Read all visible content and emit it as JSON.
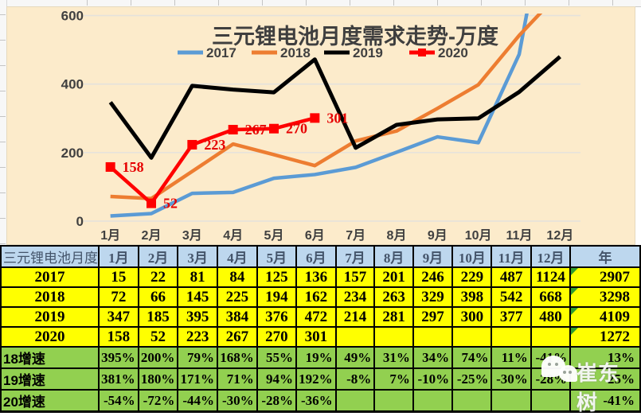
{
  "chart_data": {
    "type": "line",
    "title": "三元锂电池月度需求走势-万度",
    "categories": [
      "1月",
      "2月",
      "3月",
      "4月",
      "5月",
      "6月",
      "7月",
      "8月",
      "9月",
      "10月",
      "11月",
      "12月"
    ],
    "y_ticks": [
      0,
      200,
      400,
      600
    ],
    "ylim": [
      0,
      600
    ],
    "grid": true,
    "legend_position": "top",
    "series": [
      {
        "name": "2017",
        "color": "#5B9BD5",
        "marker": "none",
        "values": [
          15,
          22,
          81,
          84,
          125,
          136,
          157,
          201,
          246,
          229,
          487,
          1124
        ]
      },
      {
        "name": "2018",
        "color": "#ED7D31",
        "marker": "none",
        "values": [
          72,
          66,
          145,
          225,
          194,
          162,
          234,
          263,
          329,
          398,
          542,
          668
        ]
      },
      {
        "name": "2019",
        "color": "#000000",
        "marker": "none",
        "values": [
          347,
          185,
          395,
          384,
          376,
          472,
          214,
          281,
          297,
          300,
          377,
          480
        ]
      },
      {
        "name": "2020",
        "color": "#FF0000",
        "marker": "square",
        "data_labels": true,
        "values": [
          158,
          52,
          223,
          267,
          270,
          301
        ]
      }
    ]
  },
  "table": {
    "corner_label": "三元锂电池月度",
    "month_headers": [
      "1月",
      "2月",
      "3月",
      "4月",
      "5月",
      "6月",
      "7月",
      "8月",
      "9月",
      "10月",
      "11月",
      "12月"
    ],
    "year_header": "年",
    "rows": [
      {
        "label": "2017",
        "style": "yellow",
        "flag": true,
        "cells": [
          "15",
          "22",
          "81",
          "84",
          "125",
          "136",
          "157",
          "201",
          "246",
          "229",
          "487",
          "1124"
        ],
        "year": "2907"
      },
      {
        "label": "2018",
        "style": "yellow",
        "flag": true,
        "cells": [
          "72",
          "66",
          "145",
          "225",
          "194",
          "162",
          "234",
          "263",
          "329",
          "398",
          "542",
          "668"
        ],
        "year": "3298"
      },
      {
        "label": "2019",
        "style": "yellow",
        "flag": true,
        "cells": [
          "347",
          "185",
          "395",
          "384",
          "376",
          "472",
          "214",
          "281",
          "297",
          "300",
          "377",
          "480"
        ],
        "year": "4109"
      },
      {
        "label": "2020",
        "style": "yellow",
        "flag": true,
        "cells": [
          "158",
          "52",
          "223",
          "267",
          "270",
          "301",
          "",
          "",
          "",
          "",
          "",
          ""
        ],
        "year": "1272"
      },
      {
        "label": "18增速",
        "style": "green",
        "flag": false,
        "cells": [
          "395%",
          "200%",
          "79%",
          "168%",
          "55%",
          "19%",
          "49%",
          "31%",
          "34%",
          "74%",
          "11%",
          "-41%"
        ],
        "year": "13%"
      },
      {
        "label": "19增速",
        "style": "green",
        "flag": false,
        "cells": [
          "381%",
          "180%",
          "171%",
          "71%",
          "94%",
          "192%",
          "-8%",
          "7%",
          "-10%",
          "-25%",
          "-30%",
          "-28%"
        ],
        "year": "25%"
      },
      {
        "label": "20增速",
        "style": "green",
        "flag": false,
        "cells": [
          "-54%",
          "-72%",
          "-44%",
          "-30%",
          "-28%",
          "-36%",
          "",
          "",
          "",
          "",
          "",
          ""
        ],
        "year": "-41%"
      }
    ]
  },
  "watermark": {
    "text": "崔东树",
    "icon": "wechat-icon"
  },
  "colors": {
    "chart_bg": "#FCEBCB",
    "gridline": "#E4E2DC",
    "axis_text": "#404040",
    "title_text": "#3F3F3F",
    "header_bg": "#BDD7EE",
    "header_text": "#44546A",
    "yellow_row": "#FFFF00",
    "green_row": "#92D050",
    "data_label": "#E60000",
    "flag_green": "#2E9E2E"
  }
}
